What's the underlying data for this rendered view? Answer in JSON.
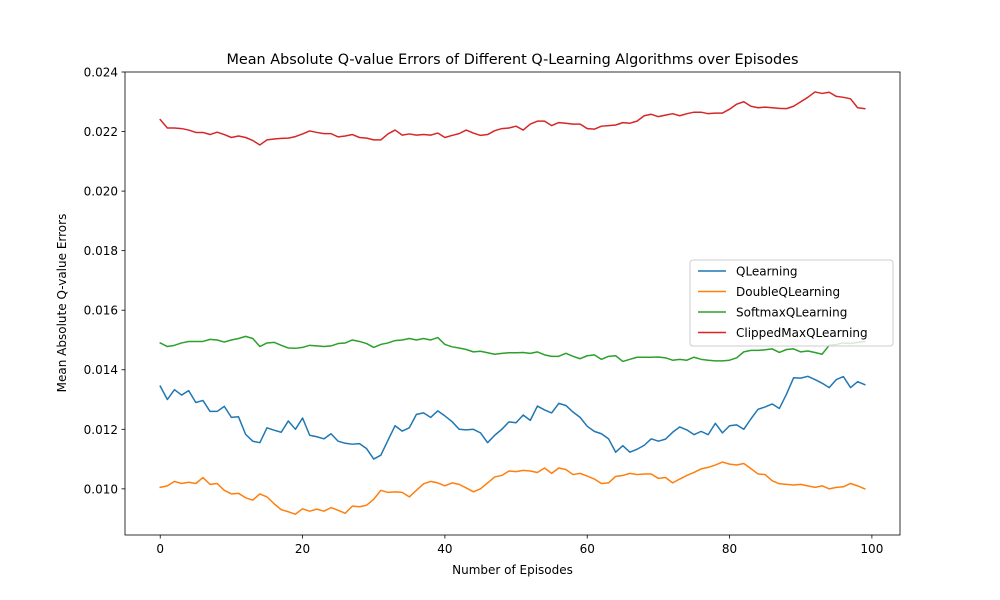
{
  "chart_data": {
    "type": "line",
    "title": "Mean Absolute Q-value Errors of Different Q-Learning Algorithms over Episodes",
    "xlabel": "Number of Episodes",
    "ylabel": "Mean Absolute Q-value Errors",
    "xlim": [
      -4.95,
      103.95
    ],
    "ylim": [
      0.00845,
      0.024
    ],
    "xticks": [
      0,
      20,
      40,
      60,
      80,
      100
    ],
    "xtick_labels": [
      "0",
      "20",
      "40",
      "60",
      "80",
      "100"
    ],
    "yticks": [
      0.01,
      0.012,
      0.014,
      0.016,
      0.018,
      0.02,
      0.022,
      0.024
    ],
    "ytick_labels": [
      "0.010",
      "0.012",
      "0.014",
      "0.016",
      "0.018",
      "0.020",
      "0.022",
      "0.024"
    ],
    "grid": false,
    "legend_position": "center-right",
    "x": [
      0,
      1,
      2,
      3,
      4,
      5,
      6,
      7,
      8,
      9,
      10,
      11,
      12,
      13,
      14,
      15,
      16,
      17,
      18,
      19,
      20,
      21,
      22,
      23,
      24,
      25,
      26,
      27,
      28,
      29,
      30,
      31,
      32,
      33,
      34,
      35,
      36,
      37,
      38,
      39,
      40,
      41,
      42,
      43,
      44,
      45,
      46,
      47,
      48,
      49,
      50,
      51,
      52,
      53,
      54,
      55,
      56,
      57,
      58,
      59,
      60,
      61,
      62,
      63,
      64,
      65,
      66,
      67,
      68,
      69,
      70,
      71,
      72,
      73,
      74,
      75,
      76,
      77,
      78,
      79,
      80,
      81,
      82,
      83,
      84,
      85,
      86,
      87,
      88,
      89,
      90,
      91,
      92,
      93,
      94,
      95,
      96,
      97,
      98,
      99
    ],
    "series": [
      {
        "name": "QLearning",
        "color": "#1f77b4",
        "values": [
          0.01345,
          0.013,
          0.01333,
          0.01315,
          0.0133,
          0.0129,
          0.01297,
          0.0126,
          0.0126,
          0.01277,
          0.0124,
          0.01242,
          0.01183,
          0.0116,
          0.01155,
          0.01205,
          0.01197,
          0.0119,
          0.01228,
          0.012,
          0.01238,
          0.0118,
          0.01175,
          0.01168,
          0.01185,
          0.0116,
          0.01153,
          0.0115,
          0.01152,
          0.01135,
          0.011,
          0.01113,
          0.01163,
          0.01212,
          0.01194,
          0.01205,
          0.0125,
          0.01255,
          0.0124,
          0.01262,
          0.01245,
          0.01226,
          0.012,
          0.01198,
          0.012,
          0.01188,
          0.01155,
          0.0118,
          0.012,
          0.01225,
          0.01222,
          0.01248,
          0.0123,
          0.01278,
          0.01265,
          0.01255,
          0.01287,
          0.0128,
          0.01258,
          0.0124,
          0.0121,
          0.01193,
          0.01185,
          0.01168,
          0.01123,
          0.01145,
          0.01123,
          0.01133,
          0.01146,
          0.01168,
          0.0116,
          0.01167,
          0.0119,
          0.01208,
          0.01198,
          0.01182,
          0.01193,
          0.01182,
          0.0122,
          0.01188,
          0.01212,
          0.01215,
          0.012,
          0.01235,
          0.01267,
          0.01275,
          0.01285,
          0.0127,
          0.01318,
          0.01373,
          0.01372,
          0.01378,
          0.01367,
          0.01355,
          0.0134,
          0.01367,
          0.01377,
          0.0134,
          0.0136,
          0.0135
        ]
      },
      {
        "name": "DoubleQLearning",
        "color": "#ff7f0e",
        "values": [
          0.01005,
          0.0101,
          0.01025,
          0.01018,
          0.01022,
          0.01018,
          0.01038,
          0.01015,
          0.01018,
          0.00995,
          0.00983,
          0.00985,
          0.0097,
          0.00962,
          0.00983,
          0.00973,
          0.0095,
          0.0093,
          0.00923,
          0.00915,
          0.00933,
          0.00925,
          0.00932,
          0.00925,
          0.00937,
          0.00928,
          0.00918,
          0.00942,
          0.0094,
          0.00945,
          0.00965,
          0.00995,
          0.00988,
          0.0099,
          0.00988,
          0.00973,
          0.00995,
          0.01017,
          0.01025,
          0.0102,
          0.0101,
          0.0102,
          0.01015,
          0.01003,
          0.0099,
          0.01,
          0.0102,
          0.0104,
          0.01045,
          0.0106,
          0.01058,
          0.01062,
          0.0106,
          0.01055,
          0.0107,
          0.01052,
          0.0107,
          0.01065,
          0.01048,
          0.01052,
          0.01043,
          0.01033,
          0.01018,
          0.0102,
          0.01042,
          0.01045,
          0.01052,
          0.01048,
          0.0105,
          0.0105,
          0.01035,
          0.01038,
          0.0102,
          0.01033,
          0.01045,
          0.01055,
          0.01067,
          0.01072,
          0.0108,
          0.0109,
          0.01083,
          0.0108,
          0.01085,
          0.01068,
          0.0105,
          0.01048,
          0.01027,
          0.01017,
          0.01015,
          0.01013,
          0.01015,
          0.0101,
          0.01005,
          0.0101,
          0.01,
          0.01005,
          0.01007,
          0.01018,
          0.0101,
          0.01
        ]
      },
      {
        "name": "SoftmaxQLearning",
        "color": "#2ca02c",
        "values": [
          0.0149,
          0.01478,
          0.01482,
          0.0149,
          0.01495,
          0.01495,
          0.01495,
          0.01502,
          0.015,
          0.01493,
          0.015,
          0.01505,
          0.01512,
          0.01505,
          0.01478,
          0.0149,
          0.01492,
          0.01482,
          0.01473,
          0.01472,
          0.01475,
          0.01482,
          0.0148,
          0.01478,
          0.0148,
          0.01488,
          0.0149,
          0.015,
          0.01495,
          0.01488,
          0.01475,
          0.01485,
          0.0149,
          0.01498,
          0.015,
          0.01505,
          0.015,
          0.01505,
          0.015,
          0.01508,
          0.01485,
          0.01477,
          0.01473,
          0.01468,
          0.0146,
          0.01462,
          0.01457,
          0.01452,
          0.01455,
          0.01457,
          0.01457,
          0.01458,
          0.01455,
          0.0146,
          0.0145,
          0.01445,
          0.01445,
          0.01455,
          0.01445,
          0.01437,
          0.01447,
          0.0145,
          0.01435,
          0.01445,
          0.01447,
          0.01428,
          0.01435,
          0.01442,
          0.01442,
          0.01442,
          0.01443,
          0.0144,
          0.01432,
          0.01435,
          0.01432,
          0.01442,
          0.01435,
          0.01432,
          0.0143,
          0.0143,
          0.01432,
          0.0144,
          0.0146,
          0.01465,
          0.01465,
          0.01467,
          0.0147,
          0.01458,
          0.01468,
          0.0147,
          0.0146,
          0.01463,
          0.01458,
          0.01452,
          0.01482,
          0.01485,
          0.0149,
          0.01488,
          0.01492,
          0.01495
        ]
      },
      {
        "name": "ClippedMaxQLearning",
        "color": "#d62728",
        "values": [
          0.0224,
          0.02212,
          0.02212,
          0.0221,
          0.02205,
          0.02197,
          0.02197,
          0.0219,
          0.02198,
          0.0219,
          0.0218,
          0.02185,
          0.0218,
          0.0217,
          0.02155,
          0.02172,
          0.02175,
          0.02177,
          0.02178,
          0.02183,
          0.02192,
          0.02202,
          0.02197,
          0.02193,
          0.02193,
          0.02182,
          0.02185,
          0.0219,
          0.0218,
          0.02178,
          0.02172,
          0.02172,
          0.02192,
          0.02205,
          0.02188,
          0.02192,
          0.02188,
          0.0219,
          0.02188,
          0.02195,
          0.0218,
          0.02187,
          0.02193,
          0.02205,
          0.02195,
          0.02187,
          0.0219,
          0.02203,
          0.0221,
          0.02212,
          0.02218,
          0.02205,
          0.02225,
          0.02235,
          0.02235,
          0.0222,
          0.0223,
          0.02228,
          0.02225,
          0.02225,
          0.0221,
          0.02208,
          0.02218,
          0.0222,
          0.02222,
          0.0223,
          0.02228,
          0.02235,
          0.02253,
          0.02258,
          0.0225,
          0.02255,
          0.0226,
          0.02253,
          0.0226,
          0.02265,
          0.02265,
          0.0226,
          0.02262,
          0.02262,
          0.02275,
          0.02292,
          0.023,
          0.02285,
          0.0228,
          0.02282,
          0.0228,
          0.02278,
          0.02277,
          0.02285,
          0.023,
          0.02315,
          0.02333,
          0.02328,
          0.02332,
          0.02318,
          0.02315,
          0.0231,
          0.0228,
          0.02277
        ]
      }
    ]
  }
}
